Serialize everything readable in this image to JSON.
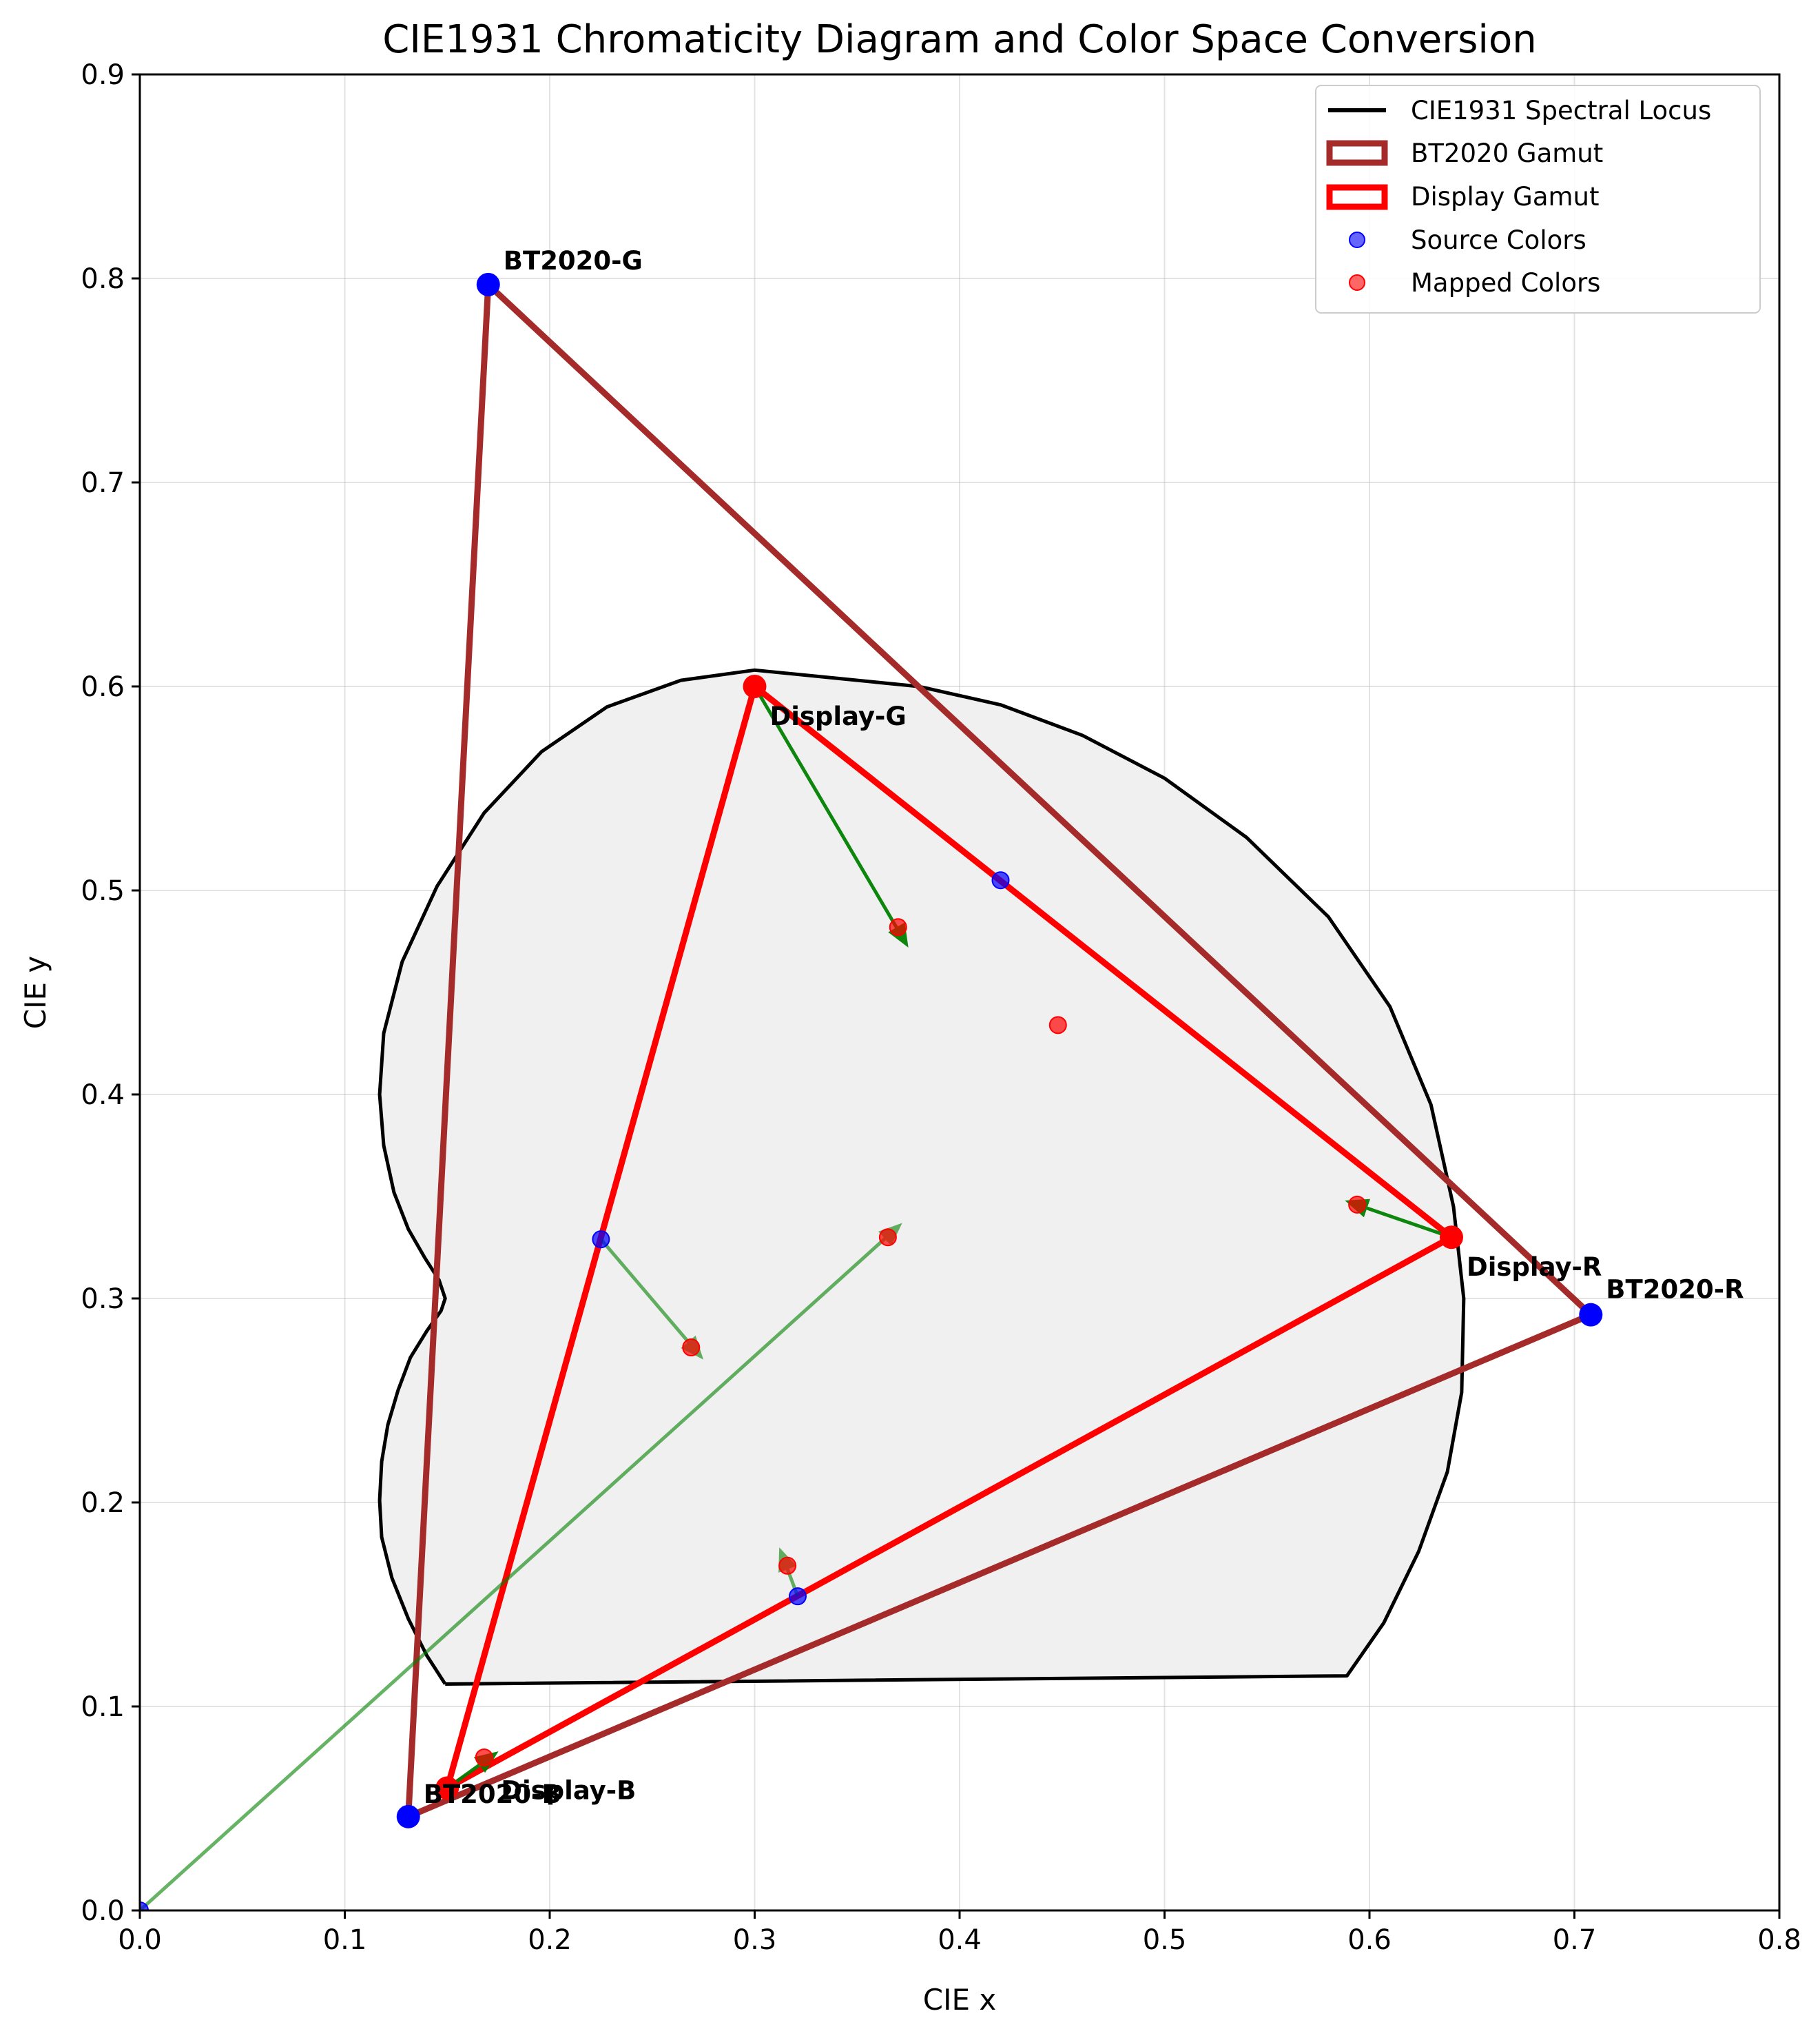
{
  "chart_data": {
    "type": "scatter",
    "title": "CIE1931 Chromaticity Diagram and Color Space Conversion",
    "xlabel": "CIE x",
    "ylabel": "CIE y",
    "xlim": [
      0.0,
      0.8
    ],
    "ylim": [
      0.0,
      0.9
    ],
    "xticks": [
      0.0,
      0.1,
      0.2,
      0.3,
      0.4,
      0.5,
      0.6,
      0.7,
      0.8
    ],
    "yticks": [
      0.0,
      0.1,
      0.2,
      0.3,
      0.4,
      0.5,
      0.6,
      0.7,
      0.8,
      0.9
    ],
    "xtick_labels": [
      "0.0",
      "0.1",
      "0.2",
      "0.3",
      "0.4",
      "0.5",
      "0.6",
      "0.7",
      "0.8"
    ],
    "ytick_labels": [
      "0.0",
      "0.1",
      "0.2",
      "0.3",
      "0.4",
      "0.5",
      "0.6",
      "0.7",
      "0.8",
      "0.9"
    ],
    "grid": true,
    "legend_position": "top-right",
    "spectral_locus": {
      "name": "CIE1931 Spectral Locus",
      "color": "#000000",
      "fill": "#f0f0f0",
      "points": [
        [
          0.149,
          0.111
        ],
        [
          0.14,
          0.125
        ],
        [
          0.131,
          0.143
        ],
        [
          0.123,
          0.163
        ],
        [
          0.118,
          0.183
        ],
        [
          0.117,
          0.201
        ],
        [
          0.118,
          0.22
        ],
        [
          0.121,
          0.238
        ],
        [
          0.126,
          0.255
        ],
        [
          0.132,
          0.271
        ],
        [
          0.14,
          0.284
        ],
        [
          0.147,
          0.294
        ],
        [
          0.149,
          0.3
        ],
        [
          0.146,
          0.309
        ],
        [
          0.139,
          0.32
        ],
        [
          0.131,
          0.334
        ],
        [
          0.124,
          0.352
        ],
        [
          0.119,
          0.375
        ],
        [
          0.117,
          0.4
        ],
        [
          0.119,
          0.43
        ],
        [
          0.128,
          0.465
        ],
        [
          0.145,
          0.502
        ],
        [
          0.168,
          0.538
        ],
        [
          0.196,
          0.568
        ],
        [
          0.228,
          0.59
        ],
        [
          0.264,
          0.603
        ],
        [
          0.3,
          0.608
        ],
        [
          0.34,
          0.604
        ],
        [
          0.38,
          0.6
        ],
        [
          0.42,
          0.591
        ],
        [
          0.46,
          0.576
        ],
        [
          0.5,
          0.555
        ],
        [
          0.54,
          0.526
        ],
        [
          0.58,
          0.487
        ],
        [
          0.61,
          0.443
        ],
        [
          0.63,
          0.395
        ],
        [
          0.641,
          0.345
        ],
        [
          0.646,
          0.3
        ],
        [
          0.645,
          0.254
        ],
        [
          0.638,
          0.215
        ],
        [
          0.624,
          0.176
        ],
        [
          0.607,
          0.141
        ],
        [
          0.589,
          0.115
        ],
        [
          0.149,
          0.111
        ]
      ]
    },
    "gamuts": [
      {
        "name": "BT2020 Gamut",
        "color": "#a52a2a",
        "primaries": [
          {
            "label": "BT2020-R",
            "x": 0.708,
            "y": 0.292
          },
          {
            "label": "BT2020-G",
            "x": 0.17,
            "y": 0.797
          },
          {
            "label": "BT2020-B",
            "x": 0.131,
            "y": 0.046
          }
        ]
      },
      {
        "name": "Display Gamut",
        "color": "#ff0000",
        "primaries": [
          {
            "label": "Display-R",
            "x": 0.64,
            "y": 0.33
          },
          {
            "label": "Display-G",
            "x": 0.3,
            "y": 0.6
          },
          {
            "label": "Display-B",
            "x": 0.15,
            "y": 0.06
          }
        ]
      }
    ],
    "source_colors": {
      "name": "Source Colors",
      "color": "#0000ff",
      "points": [
        [
          0.708,
          0.292
        ],
        [
          0.17,
          0.797
        ],
        [
          0.131,
          0.046
        ],
        [
          0.64,
          0.33
        ],
        [
          0.3,
          0.6
        ],
        [
          0.15,
          0.06
        ],
        [
          0.42,
          0.505
        ],
        [
          0.225,
          0.329
        ],
        [
          0.321,
          0.154
        ],
        [
          0.0,
          0.0
        ]
      ]
    },
    "mapped_colors": {
      "name": "Mapped Colors",
      "color": "#ff0000",
      "points": [
        [
          0.64,
          0.33
        ],
        [
          0.3,
          0.6
        ],
        [
          0.15,
          0.06
        ],
        [
          0.594,
          0.346
        ],
        [
          0.37,
          0.482
        ],
        [
          0.168,
          0.075
        ],
        [
          0.448,
          0.434
        ],
        [
          0.269,
          0.276
        ],
        [
          0.316,
          0.169
        ],
        [
          0.365,
          0.33
        ]
      ]
    },
    "arrows": {
      "color": "#008000",
      "vectors": [
        {
          "from": [
            0.64,
            0.33
          ],
          "to": [
            0.588,
            0.348
          ]
        },
        {
          "from": [
            0.3,
            0.6
          ],
          "to": [
            0.375,
            0.472
          ]
        },
        {
          "from": [
            0.15,
            0.06
          ],
          "to": [
            0.175,
            0.078
          ]
        },
        {
          "from": [
            0.225,
            0.329
          ],
          "to": [
            0.275,
            0.27
          ]
        },
        {
          "from": [
            0.321,
            0.154
          ],
          "to": [
            0.312,
            0.178
          ]
        },
        {
          "from": [
            0.0,
            0.0
          ],
          "to": [
            0.372,
            0.337
          ]
        }
      ]
    }
  }
}
